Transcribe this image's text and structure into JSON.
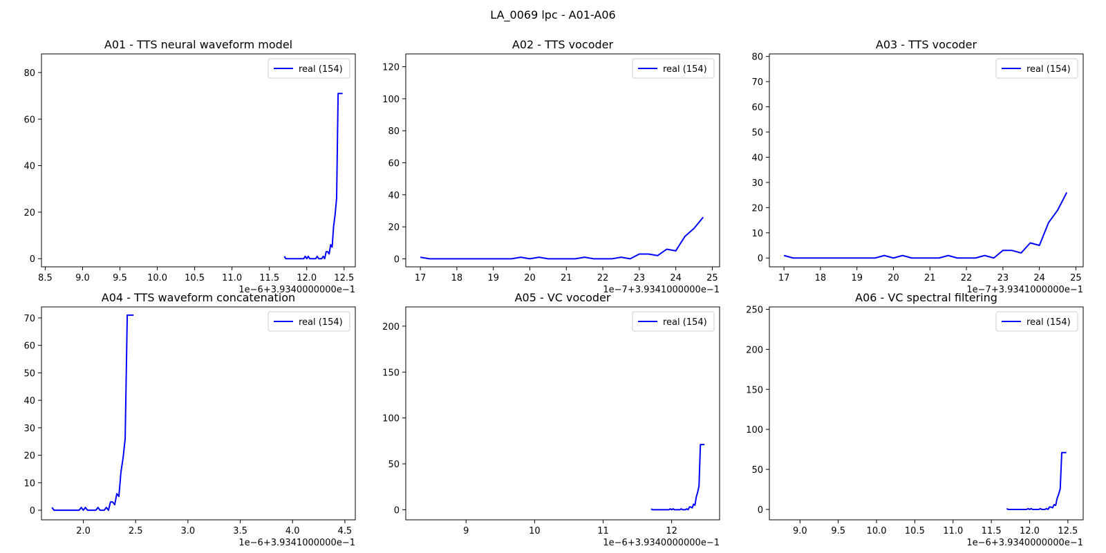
{
  "figure": {
    "suptitle": "LA_0069 lpc - A01-A06",
    "line_color": "#0000ff",
    "background": "#ffffff"
  },
  "chart_data": [
    {
      "type": "line",
      "title": "A01 - TTS neural waveform model",
      "offset_label": "1e−6+3.9340000000e−1",
      "xlim": [
        8.45,
        12.65
      ],
      "ylim": [
        -3.5,
        88
      ],
      "xticks": [
        8.5,
        9.0,
        9.5,
        10.0,
        10.5,
        11.0,
        11.5,
        12.0,
        12.5
      ],
      "xtick_labels": [
        "8.5",
        "9.0",
        "9.5",
        "10.0",
        "10.5",
        "11.0",
        "11.5",
        "12.0",
        "12.5"
      ],
      "yticks": [
        0,
        20,
        40,
        60,
        80
      ],
      "ytick_labels": [
        "0",
        "20",
        "40",
        "60",
        "80"
      ],
      "legend": {
        "position": "top-right",
        "entries": [
          "real (154)"
        ]
      },
      "series": [
        {
          "name": "real (154)",
          "x": [
            11.7,
            11.72,
            11.74,
            11.76,
            11.78,
            11.8,
            11.82,
            11.84,
            11.86,
            11.88,
            11.9,
            11.92,
            11.94,
            11.96,
            11.98,
            12.0,
            12.02,
            12.04,
            12.06,
            12.08,
            12.1,
            12.12,
            12.14,
            12.16,
            12.18,
            12.2,
            12.22,
            12.24,
            12.26,
            12.28,
            12.3,
            12.32,
            12.34,
            12.36,
            12.38,
            12.4,
            12.42,
            12.44,
            12.46,
            12.48
          ],
          "y": [
            1,
            0,
            0,
            0,
            0,
            0,
            0,
            0,
            0,
            0,
            0,
            0,
            0,
            0,
            1,
            0,
            1,
            0,
            0,
            0,
            0,
            0,
            1,
            0,
            0,
            0,
            1,
            0,
            3,
            3,
            2,
            6,
            5,
            14,
            19,
            26,
            71,
            71,
            71,
            71
          ]
        }
      ]
    },
    {
      "type": "line",
      "title": "A02 - TTS vocoder",
      "offset_label": "1e−7+3.9341000000e−1",
      "xlim": [
        16.6,
        25.2
      ],
      "ylim": [
        -5,
        128
      ],
      "xticks": [
        17,
        18,
        19,
        20,
        21,
        22,
        23,
        24,
        25
      ],
      "xtick_labels": [
        "17",
        "18",
        "19",
        "20",
        "21",
        "22",
        "23",
        "24",
        "25"
      ],
      "yticks": [
        0,
        20,
        40,
        60,
        80,
        100,
        120
      ],
      "ytick_labels": [
        "0",
        "20",
        "40",
        "60",
        "80",
        "100",
        "120"
      ],
      "legend": {
        "position": "top-right",
        "entries": [
          "real (154)"
        ]
      },
      "series": [
        {
          "name": "real (154)",
          "x": [
            17.0,
            17.25,
            17.5,
            17.75,
            18.0,
            18.25,
            18.5,
            18.75,
            19.0,
            19.25,
            19.5,
            19.75,
            20.0,
            20.25,
            20.5,
            20.75,
            21.0,
            21.25,
            21.5,
            21.75,
            22.0,
            22.25,
            22.5,
            22.75,
            23.0,
            23.25,
            23.5,
            23.75,
            24.0,
            24.25,
            24.5,
            24.75
          ],
          "y": [
            1,
            0,
            0,
            0,
            0,
            0,
            0,
            0,
            0,
            0,
            0,
            1,
            0,
            1,
            0,
            0,
            0,
            0,
            1,
            0,
            0,
            0,
            1,
            0,
            3,
            3,
            2,
            6,
            5,
            14,
            19,
            26
          ]
        }
      ]
    },
    {
      "type": "line",
      "title": "A03 - TTS vocoder",
      "offset_label": "1e−7+3.9341000000e−1",
      "xlim": [
        16.6,
        25.2
      ],
      "ylim": [
        -3.5,
        81
      ],
      "xticks": [
        17,
        18,
        19,
        20,
        21,
        22,
        23,
        24,
        25
      ],
      "xtick_labels": [
        "17",
        "18",
        "19",
        "20",
        "21",
        "22",
        "23",
        "24",
        "25"
      ],
      "yticks": [
        0,
        10,
        20,
        30,
        40,
        50,
        60,
        70,
        80
      ],
      "ytick_labels": [
        "0",
        "10",
        "20",
        "30",
        "40",
        "50",
        "60",
        "70",
        "80"
      ],
      "legend": {
        "position": "top-right",
        "entries": [
          "real (154)"
        ]
      },
      "series": [
        {
          "name": "real (154)",
          "x": [
            17.0,
            17.25,
            17.5,
            17.75,
            18.0,
            18.25,
            18.5,
            18.75,
            19.0,
            19.25,
            19.5,
            19.75,
            20.0,
            20.25,
            20.5,
            20.75,
            21.0,
            21.25,
            21.5,
            21.75,
            22.0,
            22.25,
            22.5,
            22.75,
            23.0,
            23.25,
            23.5,
            23.75,
            24.0,
            24.25,
            24.5,
            24.75
          ],
          "y": [
            1,
            0,
            0,
            0,
            0,
            0,
            0,
            0,
            0,
            0,
            0,
            1,
            0,
            1,
            0,
            0,
            0,
            0,
            1,
            0,
            0,
            0,
            1,
            0,
            3,
            3,
            2,
            6,
            5,
            14,
            19,
            26
          ]
        }
      ]
    },
    {
      "type": "line",
      "title": "A04 - TTS waveform concatenation",
      "offset_label": "1e−6+3.9341000000e−1",
      "xlim": [
        1.6,
        4.6
      ],
      "ylim": [
        -3.5,
        74
      ],
      "xticks": [
        2.0,
        2.5,
        3.0,
        3.5,
        4.0,
        4.5
      ],
      "xtick_labels": [
        "2.0",
        "2.5",
        "3.0",
        "3.5",
        "4.0",
        "4.5"
      ],
      "yticks": [
        0,
        10,
        20,
        30,
        40,
        50,
        60,
        70
      ],
      "ytick_labels": [
        "0",
        "10",
        "20",
        "30",
        "40",
        "50",
        "60",
        "70"
      ],
      "legend": {
        "position": "top-right",
        "entries": [
          "real (154)"
        ]
      },
      "series": [
        {
          "name": "real (154)",
          "x": [
            1.7,
            1.72,
            1.74,
            1.76,
            1.78,
            1.8,
            1.82,
            1.84,
            1.86,
            1.88,
            1.9,
            1.92,
            1.94,
            1.96,
            1.98,
            2.0,
            2.02,
            2.04,
            2.06,
            2.08,
            2.1,
            2.12,
            2.14,
            2.16,
            2.18,
            2.2,
            2.22,
            2.24,
            2.26,
            2.28,
            2.3,
            2.32,
            2.34,
            2.36,
            2.38,
            2.4,
            2.42,
            2.44,
            2.46,
            2.48
          ],
          "y": [
            1,
            0,
            0,
            0,
            0,
            0,
            0,
            0,
            0,
            0,
            0,
            0,
            0,
            0,
            1,
            0,
            1,
            0,
            0,
            0,
            0,
            0,
            1,
            0,
            0,
            0,
            1,
            0,
            3,
            3,
            2,
            6,
            5,
            14,
            19,
            26,
            71,
            71,
            71,
            71
          ]
        }
      ]
    },
    {
      "type": "line",
      "title": "A05 - VC vocoder",
      "offset_label": "1e−6+3.9340000000e−1",
      "xlim": [
        8.12,
        12.7
      ],
      "ylim": [
        -11,
        221
      ],
      "xticks": [
        9,
        10,
        11,
        12
      ],
      "xtick_labels": [
        "9",
        "10",
        "11",
        "12"
      ],
      "yticks": [
        0,
        50,
        100,
        150,
        200
      ],
      "ytick_labels": [
        "0",
        "50",
        "100",
        "150",
        "200"
      ],
      "legend": {
        "position": "top-right",
        "entries": [
          "real (154)"
        ]
      },
      "series": [
        {
          "name": "real (154)",
          "x": [
            11.7,
            11.72,
            11.74,
            11.76,
            11.78,
            11.8,
            11.82,
            11.84,
            11.86,
            11.88,
            11.9,
            11.92,
            11.94,
            11.96,
            11.98,
            12.0,
            12.02,
            12.04,
            12.06,
            12.08,
            12.1,
            12.12,
            12.14,
            12.16,
            12.18,
            12.2,
            12.22,
            12.24,
            12.26,
            12.28,
            12.3,
            12.32,
            12.34,
            12.36,
            12.38,
            12.4,
            12.42,
            12.44,
            12.46,
            12.48
          ],
          "y": [
            1,
            0,
            0,
            0,
            0,
            0,
            0,
            0,
            0,
            0,
            0,
            0,
            0,
            0,
            1,
            0,
            1,
            0,
            0,
            0,
            0,
            0,
            1,
            0,
            0,
            0,
            1,
            0,
            3,
            3,
            2,
            6,
            5,
            14,
            19,
            26,
            71,
            71,
            71,
            71
          ]
        }
      ]
    },
    {
      "type": "line",
      "title": "A06 - VC spectral filtering",
      "offset_label": "1e−6+3.9340000000e−1",
      "xlim": [
        8.6,
        12.7
      ],
      "ylim": [
        -13,
        253
      ],
      "xticks": [
        9.0,
        9.5,
        10.0,
        10.5,
        11.0,
        11.5,
        12.0,
        12.5
      ],
      "xtick_labels": [
        "9.0",
        "9.5",
        "10.0",
        "10.5",
        "11.0",
        "11.5",
        "12.0",
        "12.5"
      ],
      "yticks": [
        0,
        50,
        100,
        150,
        200,
        250
      ],
      "ytick_labels": [
        "0",
        "50",
        "100",
        "150",
        "200",
        "250"
      ],
      "legend": {
        "position": "top-right",
        "entries": [
          "real (154)"
        ]
      },
      "series": [
        {
          "name": "real (154)",
          "x": [
            11.7,
            11.72,
            11.74,
            11.76,
            11.78,
            11.8,
            11.82,
            11.84,
            11.86,
            11.88,
            11.9,
            11.92,
            11.94,
            11.96,
            11.98,
            12.0,
            12.02,
            12.04,
            12.06,
            12.08,
            12.1,
            12.12,
            12.14,
            12.16,
            12.18,
            12.2,
            12.22,
            12.24,
            12.26,
            12.28,
            12.3,
            12.32,
            12.34,
            12.36,
            12.38,
            12.4,
            12.42,
            12.44,
            12.46,
            12.48
          ],
          "y": [
            1,
            0,
            0,
            0,
            0,
            0,
            0,
            0,
            0,
            0,
            0,
            0,
            0,
            0,
            1,
            0,
            1,
            0,
            0,
            0,
            0,
            0,
            1,
            0,
            0,
            0,
            1,
            0,
            3,
            3,
            2,
            6,
            5,
            14,
            19,
            26,
            71,
            71,
            71,
            71
          ]
        }
      ]
    }
  ]
}
